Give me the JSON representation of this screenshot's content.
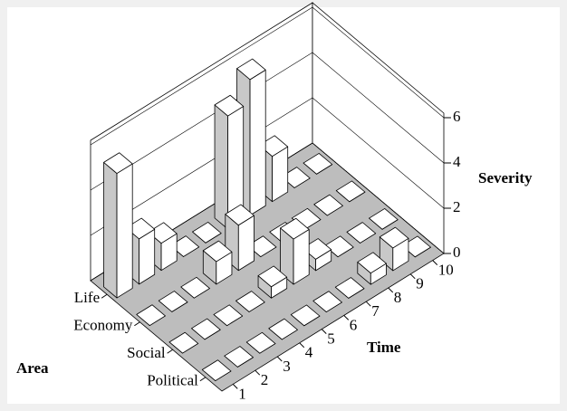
{
  "chart_data": {
    "type": "bar3d",
    "x_label": "Time",
    "y_label": "Area",
    "z_label": "Severity",
    "x": [
      1,
      2,
      3,
      4,
      5,
      6,
      7,
      8,
      9,
      10
    ],
    "xlim": [
      0.5,
      10.5
    ],
    "series": [
      {
        "name": "Life",
        "color": "#ffffff",
        "values": [
          5.5,
          2,
          1.2,
          0,
          0,
          5,
          6,
          2,
          0,
          0
        ]
      },
      {
        "name": "Economy",
        "color": "#ffffff",
        "values": [
          0,
          0,
          0,
          1,
          2,
          0,
          0,
          0,
          0,
          0
        ]
      },
      {
        "name": "Social",
        "color": "#ffffff",
        "values": [
          0,
          0,
          0,
          0,
          0.5,
          2,
          0.5,
          0,
          0,
          0
        ]
      },
      {
        "name": "Political",
        "color": "#ffffff",
        "values": [
          0,
          0,
          0,
          0,
          0,
          0,
          0,
          0.5,
          1,
          0
        ]
      }
    ],
    "zlim": [
      0,
      6
    ],
    "zticks": [
      0,
      2,
      4,
      6
    ],
    "grid": true
  }
}
